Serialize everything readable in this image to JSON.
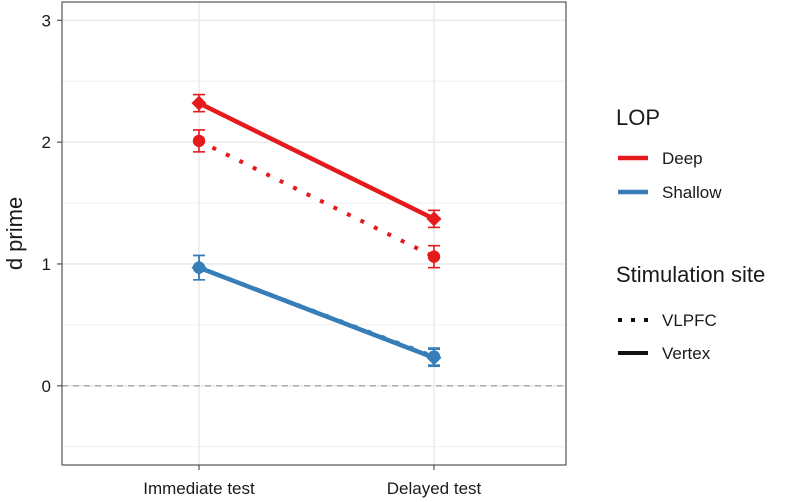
{
  "chart_data": {
    "type": "line",
    "title": "",
    "xlabel": "",
    "ylabel": "d prime",
    "categories": [
      "Immediate test",
      "Delayed test"
    ],
    "y_ticks": [
      0,
      1,
      2,
      3
    ],
    "ylim": [
      -0.65,
      3.15
    ],
    "grid": true,
    "reference_line": {
      "y": 0,
      "style": "dashed"
    },
    "series": [
      {
        "lop": "Deep",
        "site": "Vertex",
        "values": [
          2.32,
          1.37
        ],
        "error": [
          0.07,
          0.07
        ],
        "color": "#E41A1C",
        "linetype": "solid",
        "marker": "diamond"
      },
      {
        "lop": "Deep",
        "site": "VLPFC",
        "values": [
          2.01,
          1.06
        ],
        "error": [
          0.09,
          0.09
        ],
        "color": "#E41A1C",
        "linetype": "dotted",
        "marker": "circle"
      },
      {
        "lop": "Shallow",
        "site": "Vertex",
        "values": [
          0.97,
          0.23
        ],
        "error": [
          0.1,
          0.07
        ],
        "color": "#377EB8",
        "linetype": "solid",
        "marker": "diamond"
      },
      {
        "lop": "Shallow",
        "site": "VLPFC",
        "values": [
          0.97,
          0.24
        ],
        "error": [
          0.1,
          0.07
        ],
        "color": "#377EB8",
        "linetype": "dotted",
        "marker": "circle"
      }
    ],
    "legend": {
      "placement": "right",
      "lop_title": "LOP",
      "lop_items": [
        {
          "label": "Deep",
          "color": "#E41A1C"
        },
        {
          "label": "Shallow",
          "color": "#377EB8"
        }
      ],
      "site_title": "Stimulation site",
      "site_items": [
        {
          "label": "VLPFC",
          "linetype": "dotted"
        },
        {
          "label": "Vertex",
          "linetype": "solid"
        }
      ]
    }
  }
}
